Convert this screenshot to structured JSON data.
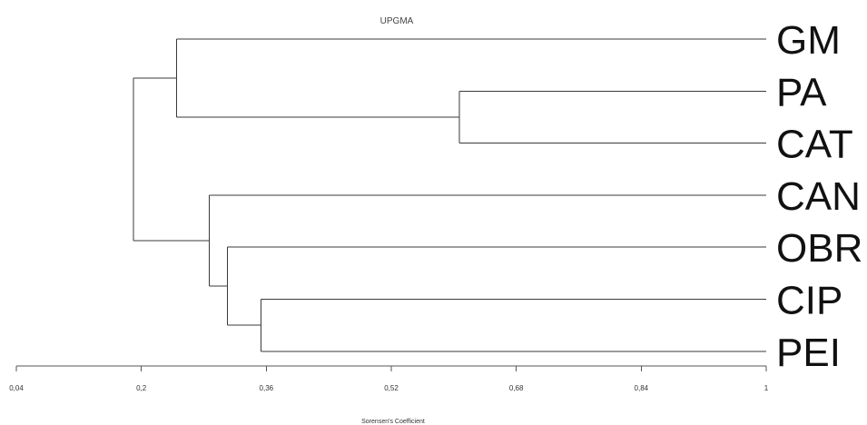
{
  "chart_data": {
    "type": "dendrogram",
    "title": "UPGMA",
    "xlabel": "Sorensen's Coefficient",
    "xlim": [
      0.04,
      1
    ],
    "ticks": [
      {
        "value": 0.04,
        "label": "0,04"
      },
      {
        "value": 0.2,
        "label": "0,2"
      },
      {
        "value": 0.36,
        "label": "0,36"
      },
      {
        "value": 0.52,
        "label": "0,52"
      },
      {
        "value": 0.68,
        "label": "0,68"
      },
      {
        "value": 0.84,
        "label": "0,84"
      },
      {
        "value": 1,
        "label": "1"
      }
    ],
    "leaves": [
      "GM",
      "PA",
      "CAT",
      "CAN",
      "OBR",
      "CIP",
      "PEI"
    ],
    "tree": {
      "height": 0.19,
      "children": [
        {
          "height": 0.245,
          "children": [
            {
              "leaf": "GM"
            },
            {
              "height": 0.607,
              "children": [
                {
                  "leaf": "PA"
                },
                {
                  "leaf": "CAT"
                }
              ]
            }
          ]
        },
        {
          "height": 0.287,
          "children": [
            {
              "leaf": "CAN"
            },
            {
              "height": 0.31,
              "children": [
                {
                  "leaf": "OBR"
                },
                {
                  "height": 0.353,
                  "children": [
                    {
                      "leaf": "CIP"
                    },
                    {
                      "leaf": "PEI"
                    }
                  ]
                }
              ]
            }
          ]
        }
      ]
    }
  }
}
